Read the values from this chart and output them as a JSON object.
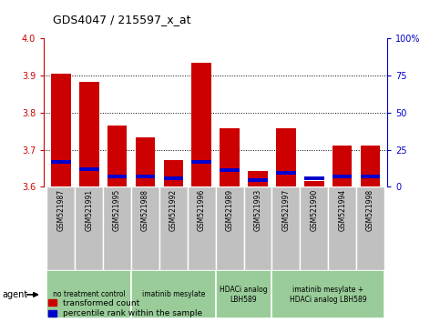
{
  "title": "GDS4047 / 215597_x_at",
  "samples": [
    "GSM521987",
    "GSM521991",
    "GSM521995",
    "GSM521988",
    "GSM521992",
    "GSM521996",
    "GSM521989",
    "GSM521993",
    "GSM521997",
    "GSM521990",
    "GSM521994",
    "GSM521998"
  ],
  "red_values": [
    3.905,
    3.883,
    3.765,
    3.733,
    3.672,
    3.935,
    3.757,
    3.642,
    3.757,
    3.615,
    3.712,
    3.712
  ],
  "blue_values": [
    3.667,
    3.648,
    3.627,
    3.627,
    3.623,
    3.666,
    3.646,
    3.618,
    3.638,
    3.622,
    3.627,
    3.628
  ],
  "ymin": 3.6,
  "ymax": 4.0,
  "yticks": [
    3.6,
    3.7,
    3.8,
    3.9,
    4.0
  ],
  "y2min": 0,
  "y2max": 100,
  "y2ticks": [
    0,
    25,
    50,
    75,
    100
  ],
  "y2ticklabels": [
    "0",
    "25",
    "50",
    "75",
    "100%"
  ],
  "red_color": "#cc0000",
  "blue_color": "#0000cc",
  "bar_width": 0.7,
  "group_boundaries": [
    {
      "start": 0,
      "end": 2,
      "label": "no treatment control"
    },
    {
      "start": 3,
      "end": 5,
      "label": "imatinib mesylate"
    },
    {
      "start": 6,
      "end": 7,
      "label": "HDACi analog\nLBH589"
    },
    {
      "start": 8,
      "end": 11,
      "label": "imatinib mesylate +\nHDACi analog LBH589"
    }
  ],
  "group_bg": "#99cc99",
  "tick_color_left": "#cc0000",
  "tick_color_right": "#0000cc",
  "legend_items": [
    {
      "label": "transformed count",
      "color": "#cc0000"
    },
    {
      "label": "percentile rank within the sample",
      "color": "#0000cc"
    }
  ],
  "agent_label": "agent",
  "sample_box_bg": "#c0c0c0",
  "fig_width": 4.83,
  "fig_height": 3.54,
  "dpi": 100
}
